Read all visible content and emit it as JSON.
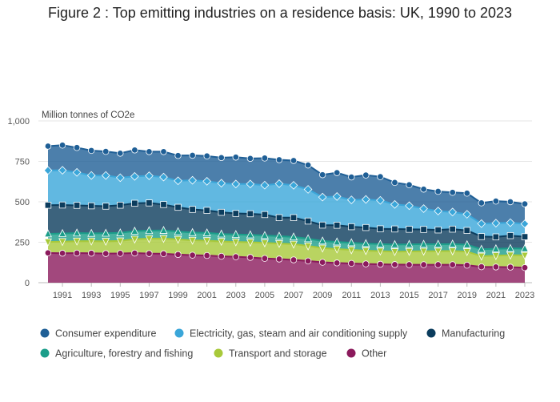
{
  "chart_data": {
    "type": "area",
    "stacked": true,
    "title": "Figure 2 : Top emitting industries on a residence basis: UK, 1990 to 2023",
    "ylabel": "Million tonnes of CO2e",
    "ylim": [
      0,
      1000
    ],
    "yticks": [
      0,
      250,
      500,
      750,
      1000
    ],
    "ytick_labels": [
      "0",
      "250",
      "500",
      "750",
      "1,000"
    ],
    "xticks": [
      1991,
      1993,
      1995,
      1997,
      1999,
      2001,
      2003,
      2005,
      2007,
      2009,
      2011,
      2013,
      2015,
      2017,
      2019,
      2021,
      2023
    ],
    "xtick_labels": [
      "1991",
      "1993",
      "1995",
      "1997",
      "1999",
      "2001",
      "2003",
      "2005",
      "2007",
      "2009",
      "2011",
      "2013",
      "2015",
      "2017",
      "2019",
      "2021",
      "2023"
    ],
    "grid": true,
    "legend_position": "bottom",
    "x": [
      1990,
      1991,
      1992,
      1993,
      1994,
      1995,
      1996,
      1997,
      1998,
      1999,
      2000,
      2001,
      2002,
      2003,
      2004,
      2005,
      2006,
      2007,
      2008,
      2009,
      2010,
      2011,
      2012,
      2013,
      2014,
      2015,
      2016,
      2017,
      2018,
      2019,
      2020,
      2021,
      2022,
      2023
    ],
    "series": [
      {
        "name": "Other",
        "color": "#8b1a5c",
        "marker": "circle",
        "values": [
          184,
          182,
          183,
          182,
          180,
          181,
          183,
          180,
          179,
          174,
          170,
          168,
          163,
          160,
          156,
          150,
          146,
          141,
          134,
          126,
          122,
          119,
          116,
          114,
          112,
          111,
          111,
          111,
          111,
          108,
          98,
          97,
          96,
          93
        ]
      },
      {
        "name": "Transport and storage",
        "color": "#a8c93a",
        "marker": "triangle-down",
        "values": [
          68,
          72,
          74,
          75,
          76,
          77,
          86,
          92,
          94,
          94,
          92,
          92,
          92,
          92,
          94,
          96,
          96,
          97,
          93,
          88,
          86,
          84,
          82,
          81,
          80,
          82,
          83,
          84,
          85,
          84,
          66,
          70,
          74,
          76
        ]
      },
      {
        "name": "Agriculture, forestry and fishing",
        "color": "#1b9e8a",
        "marker": "triangle-up",
        "values": [
          50,
          50,
          50,
          48,
          50,
          50,
          50,
          50,
          50,
          48,
          48,
          48,
          46,
          46,
          46,
          46,
          46,
          45,
          45,
          44,
          44,
          44,
          44,
          44,
          44,
          44,
          44,
          43,
          43,
          43,
          43,
          43,
          42,
          42
        ]
      },
      {
        "name": "Manufacturing",
        "color": "#0b3c5d",
        "marker": "square",
        "values": [
          177,
          176,
          171,
          170,
          167,
          171,
          172,
          171,
          160,
          150,
          143,
          139,
          134,
          130,
          130,
          129,
          114,
          119,
          109,
          98,
          103,
          99,
          99,
          94,
          96,
          93,
          91,
          88,
          92,
          88,
          78,
          73,
          79,
          73
        ]
      },
      {
        "name": "Electricity, gas, steam and air conditioning supply",
        "color": "#3aa6d9",
        "marker": "diamond",
        "values": [
          215,
          215,
          204,
          188,
          190,
          170,
          166,
          168,
          170,
          164,
          180,
          180,
          180,
          182,
          184,
          182,
          210,
          200,
          196,
          173,
          178,
          166,
          174,
          176,
          152,
          146,
          129,
          117,
          106,
          100,
          80,
          85,
          80,
          80
        ]
      },
      {
        "name": "Consumer expenditure",
        "color": "#1f5f96",
        "marker": "circle",
        "values": [
          150,
          155,
          153,
          154,
          148,
          151,
          163,
          149,
          157,
          156,
          154,
          156,
          158,
          166,
          158,
          167,
          148,
          153,
          150,
          138,
          147,
          141,
          150,
          146,
          135,
          129,
          120,
          121,
          121,
          130,
          128,
          136,
          129,
          123
        ]
      }
    ],
    "legend": [
      {
        "label": "Consumer expenditure",
        "color": "#1f5f96"
      },
      {
        "label": "Electricity, gas, steam and air conditioning supply",
        "color": "#3aa6d9"
      },
      {
        "label": "Manufacturing",
        "color": "#0b3c5d"
      },
      {
        "label": "Agriculture, forestry and fishing",
        "color": "#1b9e8a"
      },
      {
        "label": "Transport and storage",
        "color": "#a8c93a"
      },
      {
        "label": "Other",
        "color": "#8b1a5c"
      }
    ]
  }
}
